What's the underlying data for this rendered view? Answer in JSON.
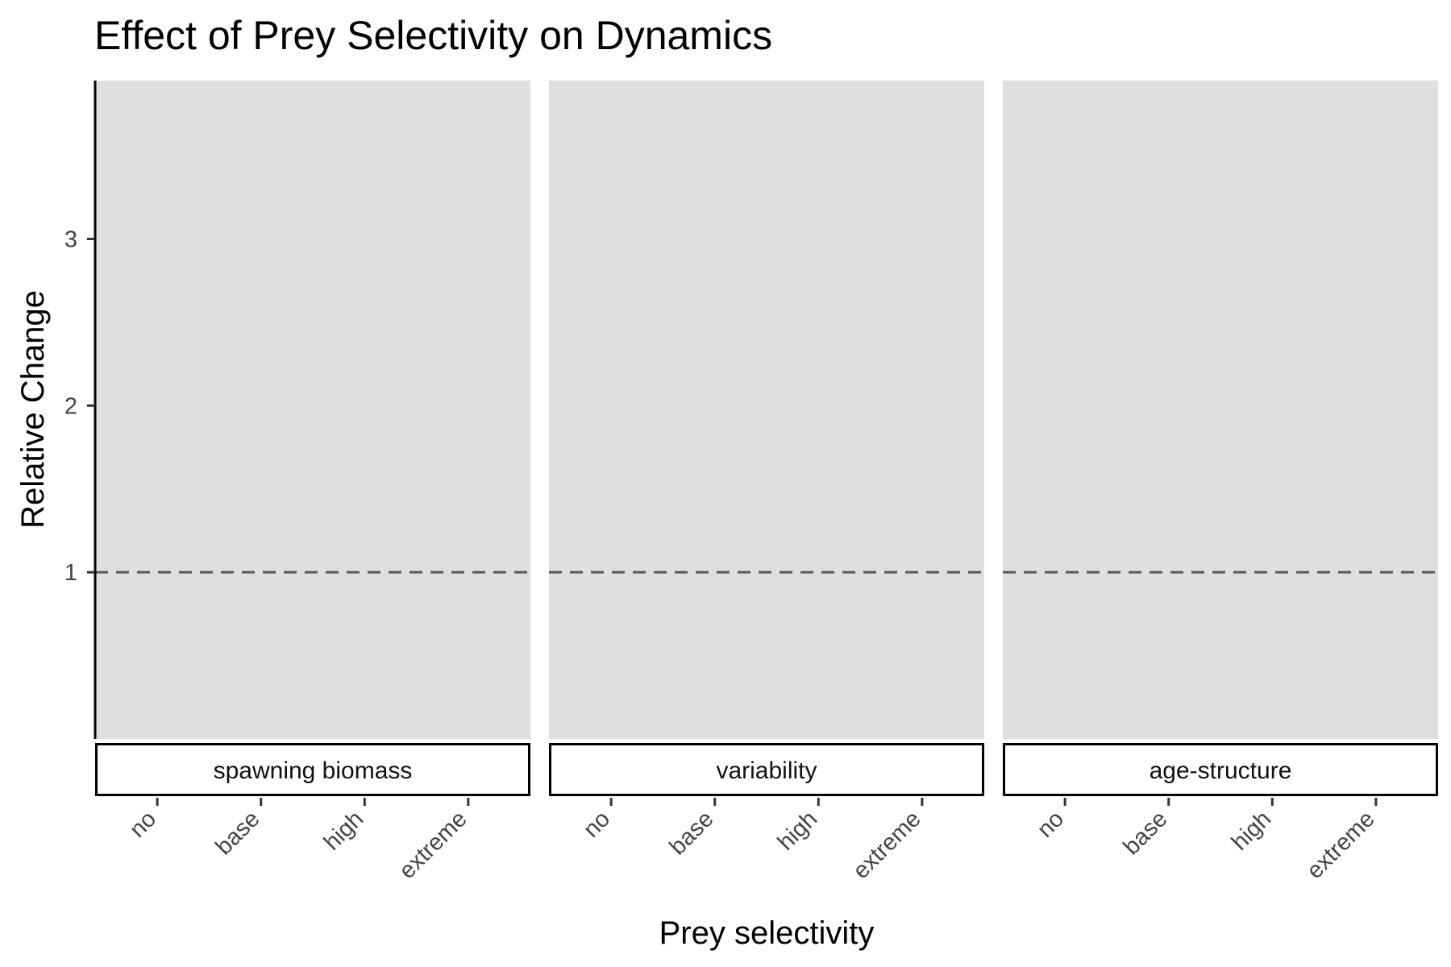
{
  "chart_data": {
    "type": "bar",
    "title": "Effect of Prey Selectivity on Dynamics",
    "xlabel": "Prey selectivity",
    "ylabel": "Relative Change",
    "categories": [
      "no",
      "base",
      "high",
      "extreme"
    ],
    "facets": [
      "spawning biomass",
      "variability",
      "age-structure"
    ],
    "series": [],
    "yticks": [
      1,
      2,
      3
    ],
    "ylim": [
      0,
      3.95
    ],
    "reference_line": {
      "y": 1,
      "style": "dashed",
      "color": "#595959"
    },
    "panel_background": "#DFDFDF",
    "grid": false,
    "legend": "none"
  }
}
